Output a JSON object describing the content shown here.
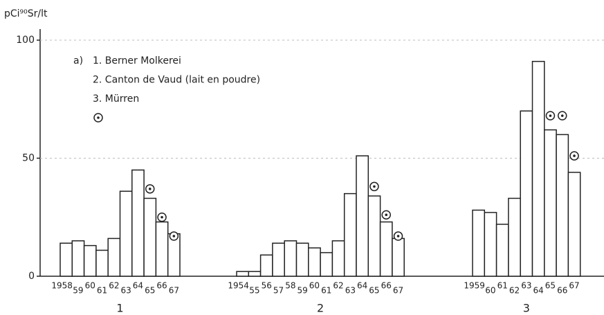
{
  "chart_data": {
    "type": "bar",
    "y_label": "pCi⁹⁰Sr/lt",
    "ylim": [
      0,
      100
    ],
    "yticks": [
      0,
      50,
      100
    ],
    "grid": true,
    "color": "#ffffff",
    "legend": {
      "prefix": "a)",
      "entries": [
        "1. Berner Molkerei",
        "2. Canton de Vaud (lait en poudre)",
        "3. Mürren"
      ]
    },
    "groups": [
      {
        "label": "1",
        "categories": [
          "1958",
          "59",
          "60",
          "61",
          "62",
          "63",
          "64",
          "65",
          "66",
          "67"
        ],
        "values": [
          14,
          15,
          13,
          11,
          16,
          36,
          45,
          33,
          23,
          18
        ],
        "circled": [
          null,
          null,
          null,
          null,
          null,
          null,
          null,
          37,
          25,
          17
        ]
      },
      {
        "label": "2",
        "categories": [
          "1954",
          "55",
          "56",
          "57",
          "58",
          "59",
          "60",
          "61",
          "62",
          "63",
          "64",
          "65",
          "66",
          "67"
        ],
        "values": [
          2,
          2,
          9,
          14,
          15,
          14,
          12,
          10,
          15,
          35,
          51,
          34,
          23,
          16
        ],
        "circled": [
          null,
          null,
          null,
          null,
          null,
          null,
          null,
          null,
          null,
          null,
          null,
          38,
          26,
          17
        ]
      },
      {
        "label": "3",
        "categories": [
          "1959",
          "60",
          "61",
          "62",
          "63",
          "64",
          "65",
          "66",
          "67"
        ],
        "values": [
          28,
          27,
          22,
          33,
          70,
          91,
          62,
          60,
          44
        ],
        "circled": [
          null,
          null,
          null,
          null,
          null,
          null,
          68,
          68,
          51
        ]
      }
    ]
  }
}
